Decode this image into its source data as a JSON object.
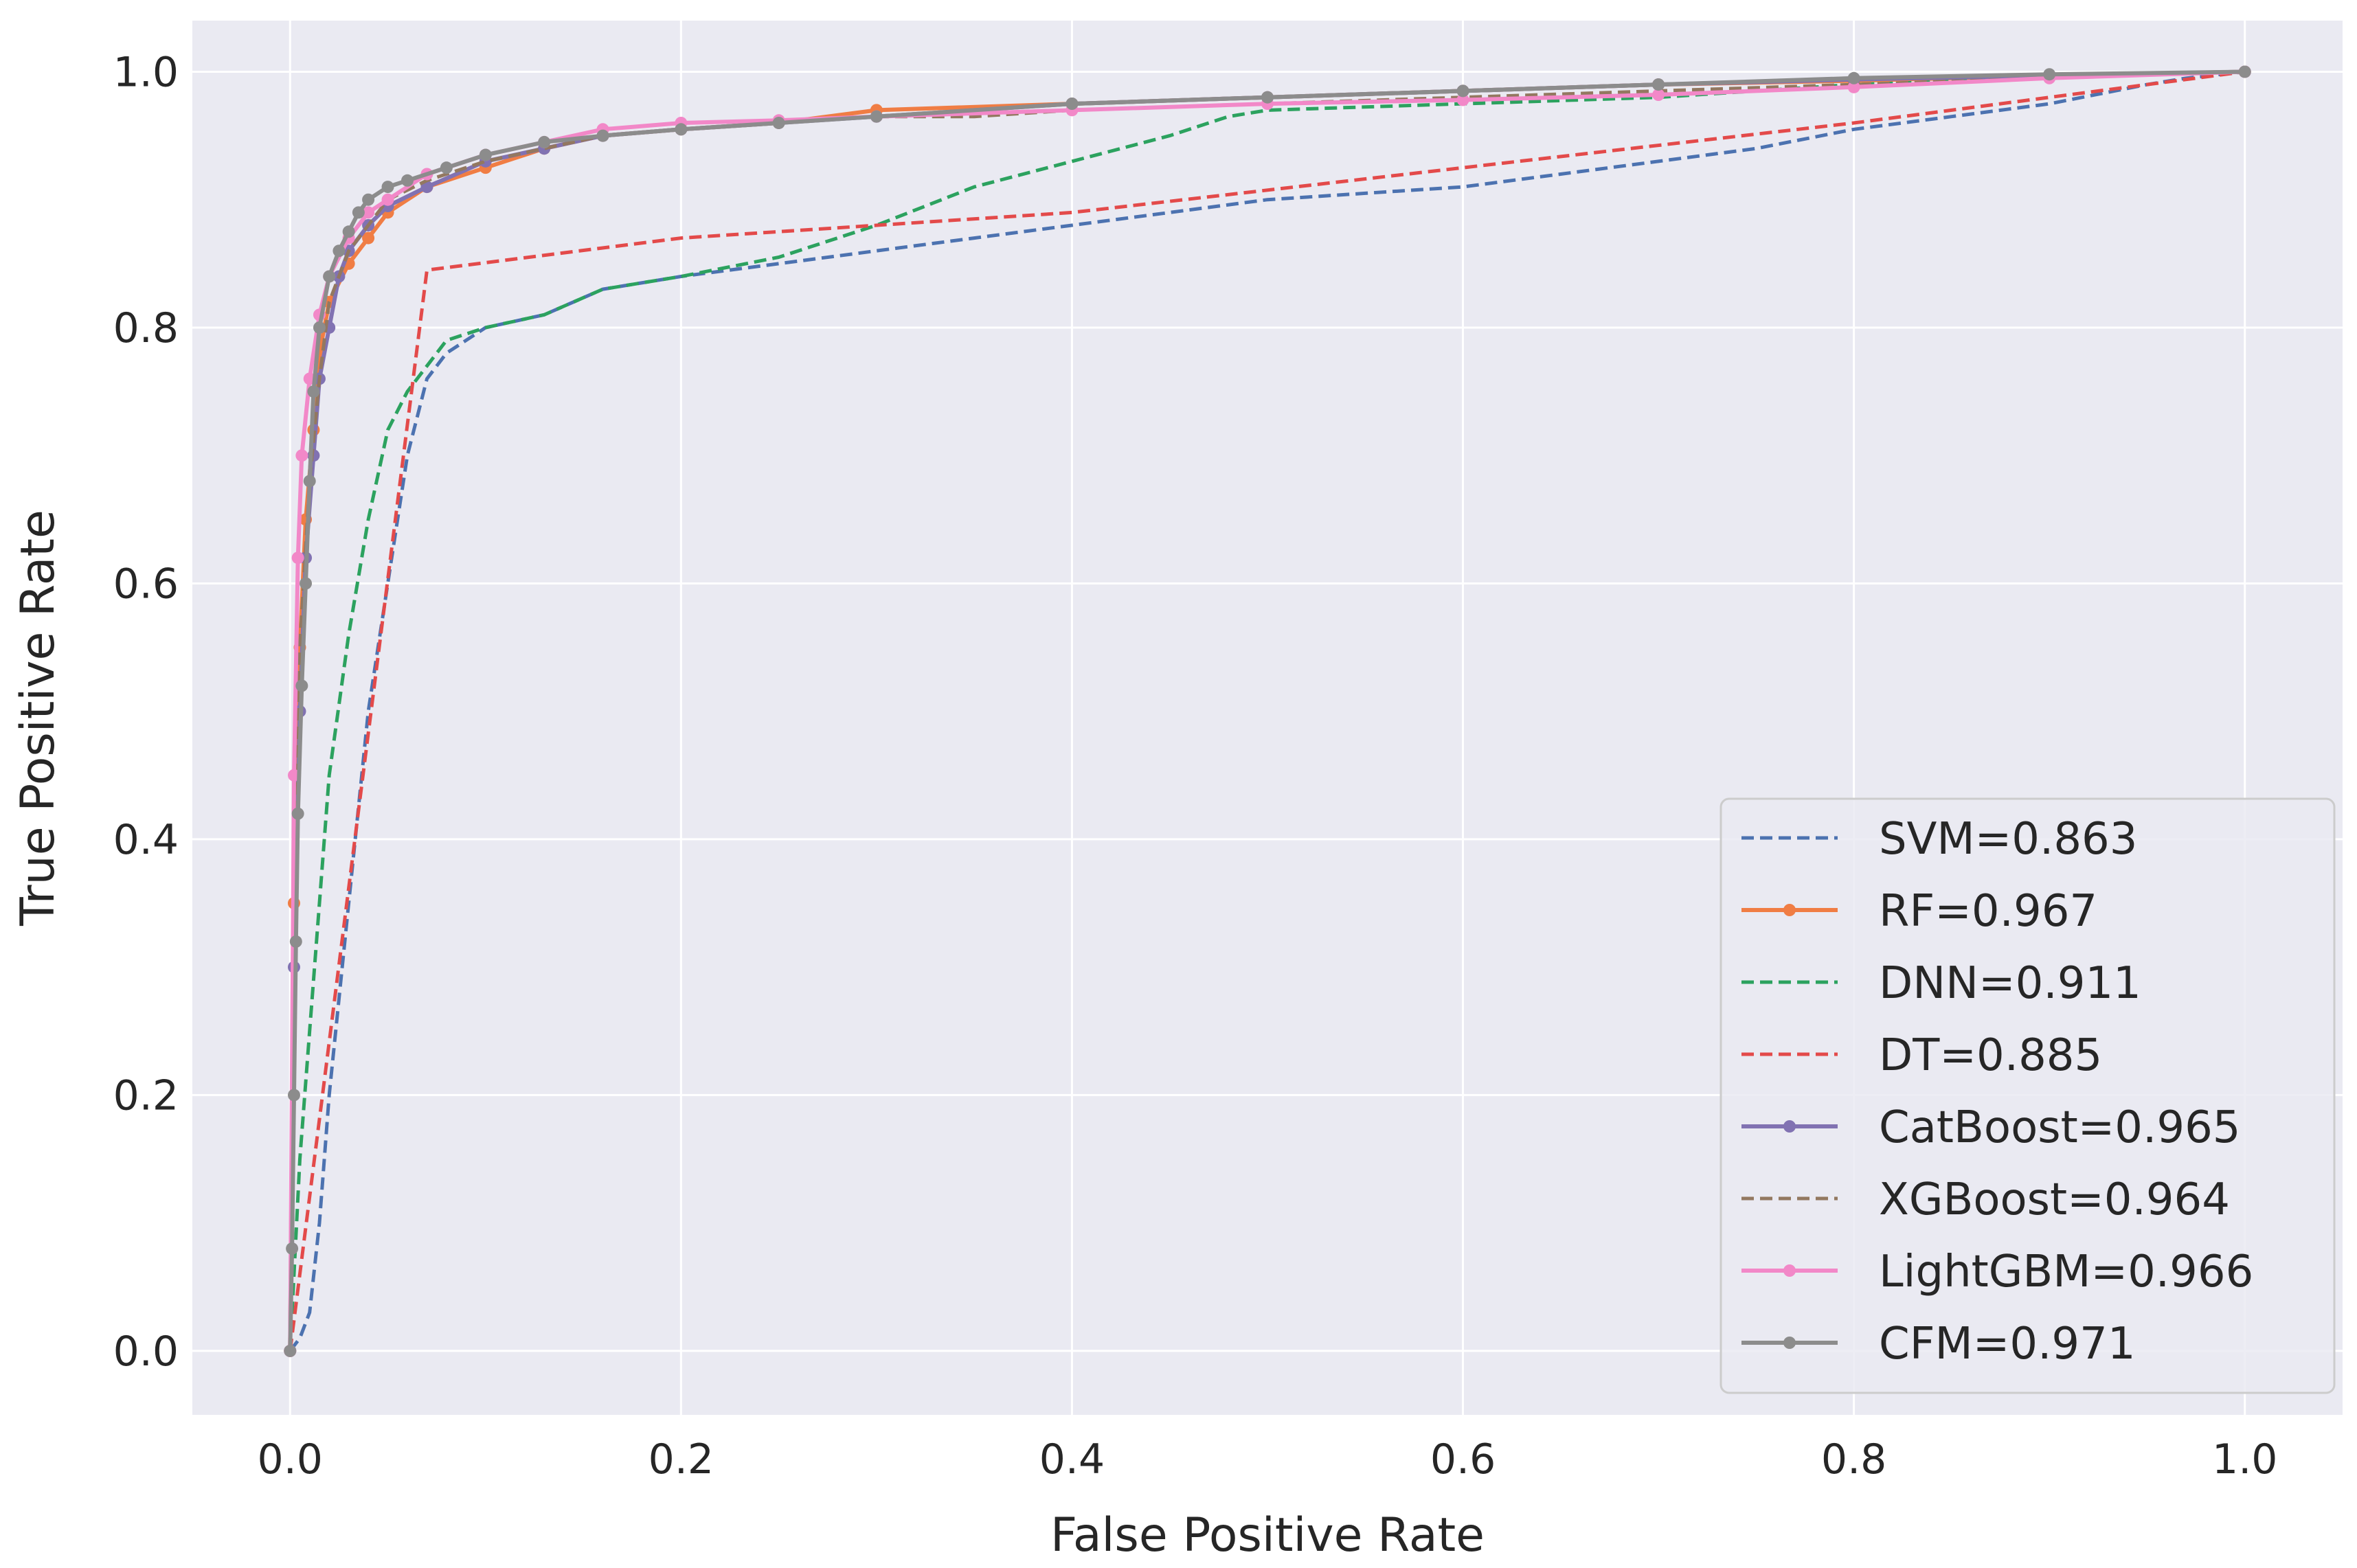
{
  "chart_data": {
    "type": "line",
    "title": "",
    "xlabel": "False Positive Rate",
    "ylabel": "True Positive Rate",
    "xlim": [
      -0.05,
      1.05
    ],
    "ylim": [
      -0.05,
      1.04
    ],
    "xticks": [
      0.0,
      0.2,
      0.4,
      0.6,
      0.8,
      1.0
    ],
    "xtick_labels": [
      "0.0",
      "0.2",
      "0.4",
      "0.6",
      "0.8",
      "1.0"
    ],
    "yticks": [
      0.0,
      0.2,
      0.4,
      0.6,
      0.8,
      1.0
    ],
    "ytick_labels": [
      "0.0",
      "0.2",
      "0.4",
      "0.6",
      "0.8",
      "1.0"
    ],
    "grid": true,
    "legend_position": "lower-right",
    "series": [
      {
        "name": "SVM",
        "legend": "SVM=0.863",
        "color": "#4c72b0",
        "dash": true,
        "marker": false,
        "x": [
          0,
          0.005,
          0.01,
          0.015,
          0.02,
          0.03,
          0.04,
          0.05,
          0.06,
          0.07,
          0.08,
          0.1,
          0.13,
          0.16,
          0.2,
          0.25,
          0.3,
          0.35,
          0.4,
          0.45,
          0.5,
          0.55,
          0.6,
          0.65,
          0.7,
          0.75,
          0.8,
          0.85,
          0.9,
          0.95,
          0.97,
          1.0
        ],
        "y": [
          0,
          0.01,
          0.03,
          0.1,
          0.2,
          0.35,
          0.5,
          0.6,
          0.7,
          0.76,
          0.78,
          0.8,
          0.81,
          0.83,
          0.84,
          0.85,
          0.86,
          0.87,
          0.88,
          0.89,
          0.9,
          0.905,
          0.91,
          0.92,
          0.93,
          0.94,
          0.955,
          0.965,
          0.975,
          0.99,
          0.995,
          1.0
        ]
      },
      {
        "name": "RF",
        "legend": "RF=0.967",
        "color": "#f07d44",
        "dash": false,
        "marker": true,
        "x": [
          0,
          0.002,
          0.005,
          0.008,
          0.012,
          0.015,
          0.02,
          0.03,
          0.04,
          0.05,
          0.07,
          0.1,
          0.13,
          0.16,
          0.2,
          0.25,
          0.3,
          0.4,
          0.5,
          0.6,
          0.7,
          0.8,
          0.9,
          1.0
        ],
        "y": [
          0,
          0.35,
          0.55,
          0.65,
          0.72,
          0.78,
          0.82,
          0.85,
          0.87,
          0.89,
          0.91,
          0.925,
          0.94,
          0.95,
          0.955,
          0.96,
          0.97,
          0.975,
          0.98,
          0.985,
          0.99,
          0.993,
          0.997,
          1.0
        ]
      },
      {
        "name": "DNN",
        "legend": "DNN=0.911",
        "color": "#2ca25f",
        "dash": true,
        "marker": false,
        "x": [
          0,
          0.005,
          0.01,
          0.015,
          0.02,
          0.03,
          0.04,
          0.05,
          0.06,
          0.07,
          0.08,
          0.1,
          0.13,
          0.16,
          0.2,
          0.25,
          0.28,
          0.3,
          0.35,
          0.4,
          0.45,
          0.48,
          0.5,
          0.6,
          0.7,
          0.8,
          0.9,
          1.0
        ],
        "y": [
          0,
          0.15,
          0.25,
          0.35,
          0.45,
          0.56,
          0.65,
          0.72,
          0.75,
          0.77,
          0.79,
          0.8,
          0.81,
          0.83,
          0.84,
          0.855,
          0.87,
          0.88,
          0.91,
          0.93,
          0.95,
          0.965,
          0.97,
          0.975,
          0.98,
          0.99,
          0.995,
          1.0
        ]
      },
      {
        "name": "DT",
        "legend": "DT=0.885",
        "color": "#e34a4a",
        "dash": true,
        "marker": false,
        "x": [
          0,
          0.07,
          0.2,
          0.4,
          0.6,
          0.8,
          1.0
        ],
        "y": [
          0,
          0.845,
          0.87,
          0.89,
          0.925,
          0.96,
          1.0
        ]
      },
      {
        "name": "CatBoost",
        "legend": "CatBoost=0.965",
        "color": "#8172b2",
        "dash": false,
        "marker": true,
        "x": [
          0,
          0.002,
          0.005,
          0.008,
          0.012,
          0.015,
          0.02,
          0.025,
          0.03,
          0.04,
          0.05,
          0.07,
          0.1,
          0.13,
          0.16,
          0.2,
          0.25,
          0.3,
          0.4,
          0.5,
          0.6,
          0.7,
          0.8,
          0.9,
          1.0
        ],
        "y": [
          0,
          0.3,
          0.5,
          0.62,
          0.7,
          0.76,
          0.8,
          0.84,
          0.86,
          0.88,
          0.895,
          0.91,
          0.93,
          0.94,
          0.95,
          0.955,
          0.96,
          0.965,
          0.975,
          0.98,
          0.985,
          0.99,
          0.994,
          0.997,
          1.0
        ]
      },
      {
        "name": "XGBoost",
        "legend": "XGBoost=0.964",
        "color": "#937860",
        "dash": true,
        "marker": false,
        "x": [
          0,
          0.002,
          0.005,
          0.01,
          0.015,
          0.02,
          0.03,
          0.04,
          0.05,
          0.07,
          0.1,
          0.13,
          0.16,
          0.2,
          0.25,
          0.3,
          0.35,
          0.4,
          0.5,
          0.6,
          0.7,
          0.8,
          0.9,
          1.0
        ],
        "y": [
          0,
          0.35,
          0.55,
          0.68,
          0.76,
          0.82,
          0.86,
          0.88,
          0.9,
          0.915,
          0.93,
          0.94,
          0.95,
          0.955,
          0.96,
          0.965,
          0.965,
          0.97,
          0.975,
          0.98,
          0.985,
          0.99,
          0.995,
          1.0
        ]
      },
      {
        "name": "LightGBM",
        "legend": "LightGBM=0.966",
        "color": "#f288c8",
        "dash": false,
        "marker": true,
        "x": [
          0,
          0.002,
          0.004,
          0.006,
          0.01,
          0.015,
          0.02,
          0.03,
          0.04,
          0.05,
          0.07,
          0.1,
          0.13,
          0.16,
          0.2,
          0.25,
          0.3,
          0.4,
          0.5,
          0.6,
          0.7,
          0.8,
          0.9,
          1.0
        ],
        "y": [
          0,
          0.45,
          0.62,
          0.7,
          0.76,
          0.81,
          0.84,
          0.87,
          0.89,
          0.9,
          0.92,
          0.935,
          0.945,
          0.955,
          0.96,
          0.962,
          0.965,
          0.97,
          0.975,
          0.978,
          0.982,
          0.988,
          0.995,
          1.0
        ]
      },
      {
        "name": "CFM",
        "legend": "CFM=0.971",
        "color": "#8c8c8c",
        "dash": false,
        "marker": true,
        "x": [
          0,
          0.001,
          0.002,
          0.003,
          0.004,
          0.006,
          0.008,
          0.01,
          0.012,
          0.015,
          0.02,
          0.025,
          0.03,
          0.035,
          0.04,
          0.05,
          0.06,
          0.08,
          0.1,
          0.13,
          0.16,
          0.2,
          0.25,
          0.3,
          0.4,
          0.5,
          0.6,
          0.7,
          0.8,
          0.9,
          1.0
        ],
        "y": [
          0,
          0.08,
          0.2,
          0.32,
          0.42,
          0.52,
          0.6,
          0.68,
          0.75,
          0.8,
          0.84,
          0.86,
          0.875,
          0.89,
          0.9,
          0.91,
          0.915,
          0.925,
          0.935,
          0.945,
          0.95,
          0.955,
          0.96,
          0.965,
          0.975,
          0.98,
          0.985,
          0.99,
          0.995,
          0.998,
          1.0
        ]
      }
    ]
  }
}
